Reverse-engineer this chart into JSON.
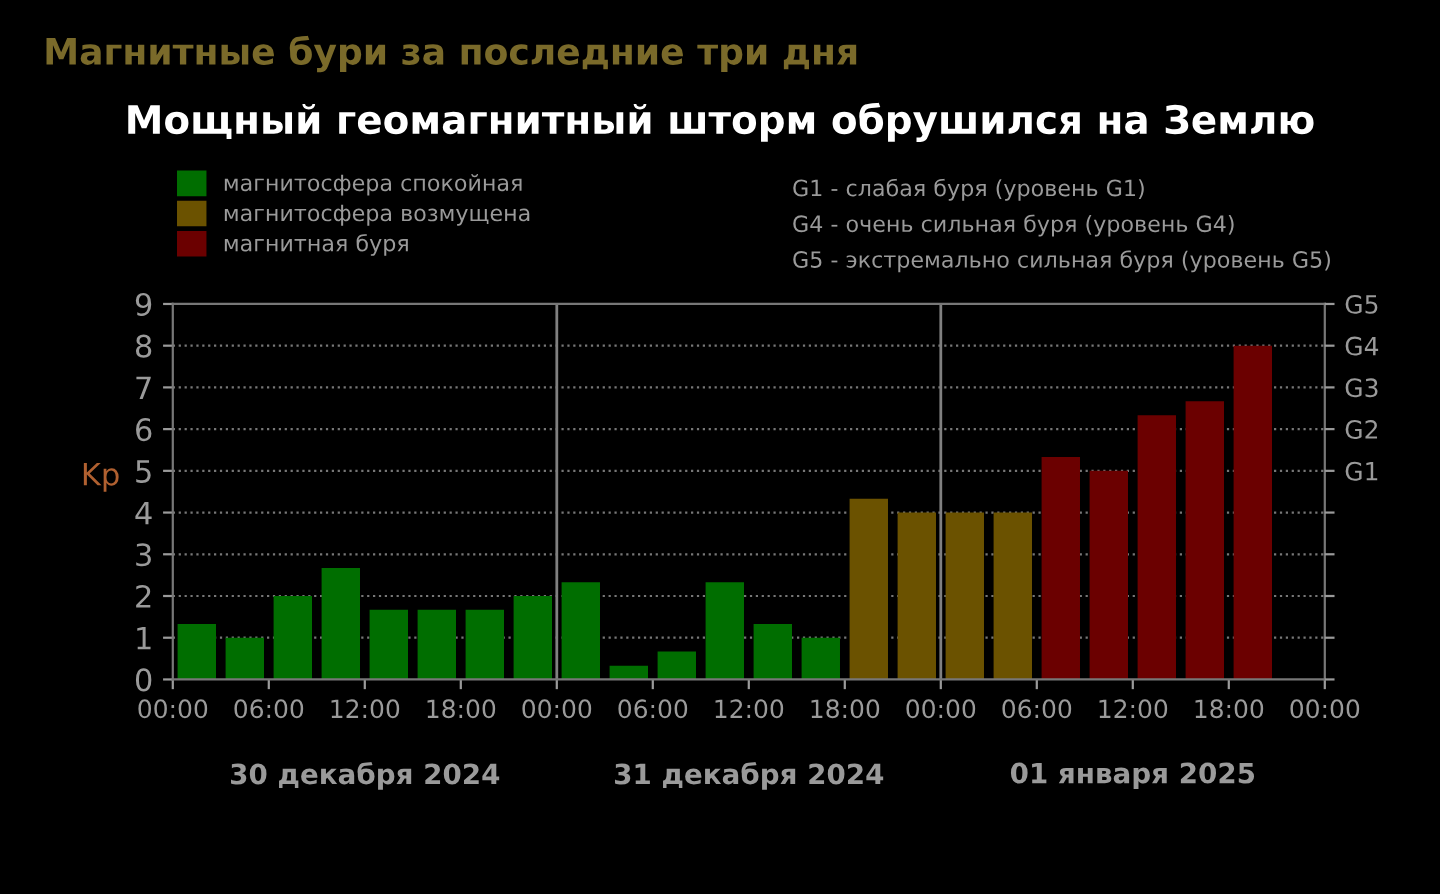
{
  "chart_data": {
    "type": "bar",
    "title": "Магнитные бури за последние три дня",
    "subtitle": "Мощный геомагнитный шторм обрушился на Землю",
    "ylabel": "Kp",
    "xlim": [
      "2024-12-30T00:00",
      "2025-01-02T00:00"
    ],
    "xticks": [
      {
        "value": "2024-12-30T00:00",
        "label": "00:00"
      },
      {
        "value": "2024-12-30T06:00",
        "label": "06:00"
      },
      {
        "value": "2024-12-30T12:00",
        "label": "12:00"
      },
      {
        "value": "2024-12-30T18:00",
        "label": "18:00"
      },
      {
        "value": "2024-12-31T00:00",
        "label": "00:00"
      },
      {
        "value": "2024-12-31T06:00",
        "label": "06:00"
      },
      {
        "value": "2024-12-31T12:00",
        "label": "12:00"
      },
      {
        "value": "2024-12-31T18:00",
        "label": "18:00"
      },
      {
        "value": "2025-01-01T00:00",
        "label": "00:00"
      },
      {
        "value": "2025-01-01T06:00",
        "label": "06:00"
      },
      {
        "value": "2025-01-01T12:00",
        "label": "12:00"
      },
      {
        "value": "2025-01-01T18:00",
        "label": "18:00"
      },
      {
        "value": "2025-01-02T00:00",
        "label": "00:00"
      }
    ],
    "ylim": [
      0,
      9
    ],
    "yticks": [
      0,
      1,
      2,
      3,
      4,
      5,
      6,
      7,
      8,
      9
    ],
    "grid": "y",
    "legend": "top left",
    "ref_lines": [
      {
        "axis": "x",
        "value": "2024-12-31T00:00",
        "color": "#808080"
      },
      {
        "axis": "x",
        "value": "2025-01-01T00:00",
        "color": "#808080"
      }
    ],
    "series": [
      {
        "name": "магнитосфера спокойная",
        "color": "#006e00",
        "x": [
          "2024-12-30T01:30",
          "2024-12-30T04:30",
          "2024-12-30T07:30",
          "2024-12-30T10:30",
          "2024-12-30T13:30",
          "2024-12-30T16:30",
          "2024-12-30T19:30",
          "2024-12-30T22:30",
          "2024-12-31T01:30",
          "2024-12-31T04:30",
          "2024-12-31T07:30",
          "2024-12-31T10:30",
          "2024-12-31T13:30",
          "2024-12-31T16:30"
        ],
        "values": [
          1.33,
          1.0,
          2.0,
          2.67,
          1.67,
          1.67,
          1.67,
          2.0,
          2.33,
          0.33,
          0.67,
          2.33,
          1.33,
          1.0
        ]
      },
      {
        "name": "магнитосфера возмущена",
        "color": "#6b5200",
        "x": [
          "2024-12-31T19:30",
          "2024-12-31T22:30",
          "2025-01-01T01:30",
          "2025-01-01T04:30"
        ],
        "values": [
          4.33,
          4.0,
          4.0,
          4.0
        ]
      },
      {
        "name": "магнитная буря",
        "color": "#6b0000",
        "x": [
          "2025-01-01T07:30",
          "2025-01-01T10:30",
          "2025-01-01T13:30",
          "2025-01-01T16:30",
          "2025-01-01T19:30"
        ],
        "values": [
          5.33,
          5.0,
          6.33,
          6.67,
          8.0
        ]
      }
    ],
    "y2_categories": [
      "G5",
      "G4",
      "G3",
      "G2",
      "G1",
      null,
      null,
      null,
      null,
      null
    ],
    "annotations": [
      "G1 - слабая буря (уровень G1)",
      "G4 - очень сильная буря (уровень G4)",
      "G5 - экстремально сильная буря (уровень G5)",
      "30 декабря 2024",
      "31 декабря 2024",
      "01 января 2025"
    ]
  }
}
